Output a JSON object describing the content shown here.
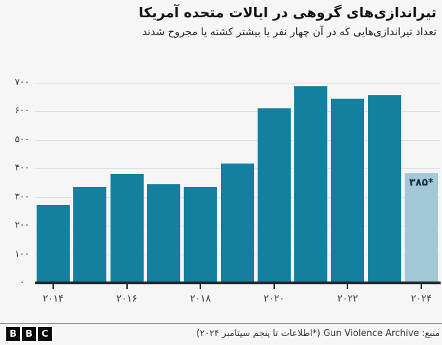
{
  "header": {
    "title": "تیراندازی‌های گروهی در ایالات متحده آمریکا",
    "subtitle": "تعداد تیراندازی‌هایی که در آن چهار نفر یا بیشتر کشته یا مجروح شدند"
  },
  "chart_data": {
    "type": "bar",
    "title": "تیراندازی‌های گروهی در ایالات متحده آمریکا",
    "categories": [
      "2014",
      "2015",
      "2016",
      "2017",
      "2018",
      "2019",
      "2020",
      "2021",
      "2022",
      "2023",
      "2024"
    ],
    "values": [
      272,
      335,
      382,
      346,
      336,
      417,
      610,
      689,
      645,
      656,
      385
    ],
    "ylim": [
      0,
      700
    ],
    "grid": true,
    "y_ticks": [
      {
        "value": 0,
        "label": "۰"
      },
      {
        "value": 100,
        "label": "۱۰۰"
      },
      {
        "value": 200,
        "label": "۲۰۰"
      },
      {
        "value": 300,
        "label": "۳۰۰"
      },
      {
        "value": 400,
        "label": "۴۰۰"
      },
      {
        "value": 500,
        "label": "۵۰۰"
      },
      {
        "value": 600,
        "label": "۶۰۰"
      },
      {
        "value": 700,
        "label": "۷۰۰"
      }
    ],
    "x_ticks": [
      {
        "index": 0,
        "label": "۲۰۱۴"
      },
      {
        "index": 2,
        "label": "۲۰۱۶"
      },
      {
        "index": 4,
        "label": "۲۰۱۸"
      },
      {
        "index": 6,
        "label": "۲۰۲۰"
      },
      {
        "index": 8,
        "label": "۲۰۲۲"
      },
      {
        "index": 10,
        "label": "۲۰۲۴"
      }
    ],
    "highlight_index": 10,
    "highlight_label": "۳۸۵*",
    "colors": {
      "bar": "#1480a0",
      "bar_highlight": "#a3c8d8",
      "grid": "#dcdcdc",
      "axis": "#262626"
    }
  },
  "footer": {
    "source": "منبع: Gun Violence Archive (*اطلاعات تا پنجم سپتامبر ۲۰۲۴)",
    "logo": [
      "B",
      "B",
      "C"
    ]
  }
}
